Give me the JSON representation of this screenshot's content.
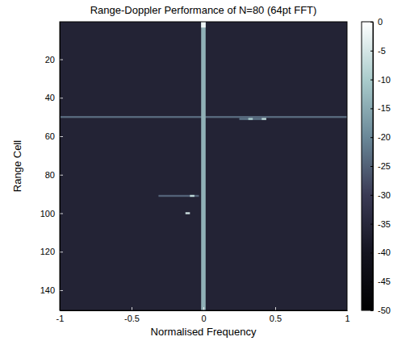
{
  "chart_data": {
    "type": "heatmap",
    "title": "Range-Doppler Performance of N=80 (64pt FFT)",
    "x_label": "Normalised Frequency",
    "y_label": "Range Cell",
    "xlim": [
      -1,
      1
    ],
    "xticks": [
      -1,
      -0.5,
      0,
      0.5,
      1
    ],
    "ylim": [
      0.5,
      150.5
    ],
    "yticks": [
      20,
      40,
      60,
      80,
      100,
      120,
      140
    ],
    "noise_floor": -36,
    "cells": [
      {
        "x": [
          -1,
          1
        ],
        "y": [
          49.5,
          50.5
        ],
        "value": -24
      },
      {
        "x": [
          -0.015625,
          0.015625
        ],
        "y": [
          0.5,
          150.5
        ],
        "value": -14
      },
      {
        "x": [
          -0.015625,
          0.015625
        ],
        "y": [
          0.5,
          3.5
        ],
        "value": -2
      },
      {
        "x": [
          0.25,
          0.4375
        ],
        "y": [
          50.5,
          51.5
        ],
        "value": -22
      },
      {
        "x": [
          0.3125,
          0.34375
        ],
        "y": [
          50.5,
          51.5
        ],
        "value": -10
      },
      {
        "x": [
          0.40625,
          0.4375
        ],
        "y": [
          50.5,
          51.5
        ],
        "value": -8
      },
      {
        "x": [
          -0.3125,
          -0.03125
        ],
        "y": [
          90.5,
          91.5
        ],
        "value": -25
      },
      {
        "x": [
          -0.09375,
          -0.0625
        ],
        "y": [
          90.5,
          91.5
        ],
        "value": -8
      },
      {
        "x": [
          -0.125,
          -0.09375
        ],
        "y": [
          99.5,
          100.5
        ],
        "value": -6
      }
    ],
    "colorbar": {
      "range": [
        -50,
        0
      ],
      "ticks": [
        0,
        -5,
        -10,
        -15,
        -20,
        -25,
        -30,
        -35,
        -40,
        -45,
        -50
      ]
    }
  }
}
